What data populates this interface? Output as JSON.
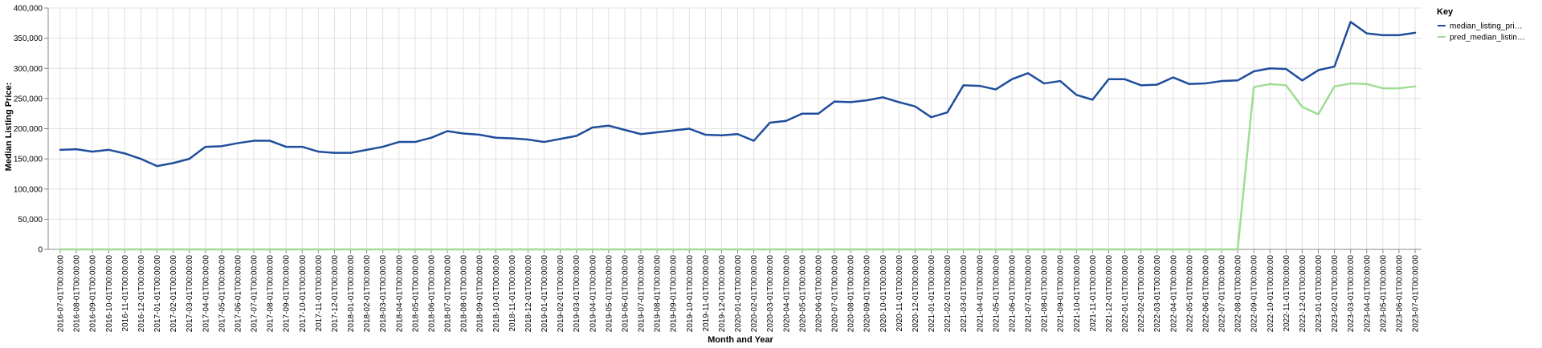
{
  "chart_data": {
    "type": "line",
    "xlabel": "Month and Year",
    "ylabel": "Median Listing Price:",
    "ylim": [
      0,
      400000
    ],
    "yticks": [
      0,
      50000,
      100000,
      150000,
      200000,
      250000,
      300000,
      350000,
      400000
    ],
    "ytick_labels": [
      "0",
      "50,000",
      "100,000",
      "150,000",
      "200,000",
      "250,000",
      "300,000",
      "350,000",
      "400,000"
    ],
    "grid": true,
    "legend": {
      "title": "Key",
      "position": "right"
    },
    "categories": [
      "2016-07-01T00:00:00",
      "2016-08-01T00:00:00",
      "2016-09-01T00:00:00",
      "2016-10-01T00:00:00",
      "2016-11-01T00:00:00",
      "2016-12-01T00:00:00",
      "2017-01-01T00:00:00",
      "2017-02-01T00:00:00",
      "2017-03-01T00:00:00",
      "2017-04-01T00:00:00",
      "2017-05-01T00:00:00",
      "2017-06-01T00:00:00",
      "2017-07-01T00:00:00",
      "2017-08-01T00:00:00",
      "2017-09-01T00:00:00",
      "2017-10-01T00:00:00",
      "2017-11-01T00:00:00",
      "2017-12-01T00:00:00",
      "2018-01-01T00:00:00",
      "2018-02-01T00:00:00",
      "2018-03-01T00:00:00",
      "2018-04-01T00:00:00",
      "2018-05-01T00:00:00",
      "2018-06-01T00:00:00",
      "2018-07-01T00:00:00",
      "2018-08-01T00:00:00",
      "2018-09-01T00:00:00",
      "2018-10-01T00:00:00",
      "2018-11-01T00:00:00",
      "2018-12-01T00:00:00",
      "2019-01-01T00:00:00",
      "2019-02-01T00:00:00",
      "2019-03-01T00:00:00",
      "2019-04-01T00:00:00",
      "2019-05-01T00:00:00",
      "2019-06-01T00:00:00",
      "2019-07-01T00:00:00",
      "2019-08-01T00:00:00",
      "2019-09-01T00:00:00",
      "2019-10-01T00:00:00",
      "2019-11-01T00:00:00",
      "2019-12-01T00:00:00",
      "2020-01-01T00:00:00",
      "2020-02-01T00:00:00",
      "2020-03-01T00:00:00",
      "2020-04-01T00:00:00",
      "2020-05-01T00:00:00",
      "2020-06-01T00:00:00",
      "2020-07-01T00:00:00",
      "2020-08-01T00:00:00",
      "2020-09-01T00:00:00",
      "2020-10-01T00:00:00",
      "2020-11-01T00:00:00",
      "2020-12-01T00:00:00",
      "2021-01-01T00:00:00",
      "2021-02-01T00:00:00",
      "2021-03-01T00:00:00",
      "2021-04-01T00:00:00",
      "2021-05-01T00:00:00",
      "2021-06-01T00:00:00",
      "2021-07-01T00:00:00",
      "2021-08-01T00:00:00",
      "2021-09-01T00:00:00",
      "2021-10-01T00:00:00",
      "2021-11-01T00:00:00",
      "2021-12-01T00:00:00",
      "2022-01-01T00:00:00",
      "2022-02-01T00:00:00",
      "2022-03-01T00:00:00",
      "2022-04-01T00:00:00",
      "2022-05-01T00:00:00",
      "2022-06-01T00:00:00",
      "2022-07-01T00:00:00",
      "2022-08-01T00:00:00",
      "2022-09-01T00:00:00",
      "2022-10-01T00:00:00",
      "2022-11-01T00:00:00",
      "2022-12-01T00:00:00",
      "2023-01-01T00:00:00",
      "2023-02-01T00:00:00",
      "2023-03-01T00:00:00",
      "2023-04-01T00:00:00",
      "2023-05-01T00:00:00",
      "2023-06-01T00:00:00",
      "2023-07-01T00:00:00"
    ],
    "series": [
      {
        "name": "median_listing_pri…",
        "color": "#1f4e9c",
        "values": [
          165000,
          166000,
          162000,
          165000,
          159000,
          150000,
          138000,
          143000,
          150000,
          170000,
          171000,
          176000,
          180000,
          180000,
          170000,
          170000,
          162000,
          160000,
          160000,
          165000,
          170000,
          178000,
          178000,
          185000,
          196000,
          192000,
          190000,
          185000,
          184000,
          182000,
          178000,
          183000,
          188000,
          202000,
          205000,
          198000,
          191000,
          194000,
          197000,
          200000,
          190000,
          189000,
          191000,
          180000,
          210000,
          213000,
          225000,
          225000,
          245000,
          244000,
          247000,
          252000,
          244000,
          237000,
          219000,
          227000,
          272000,
          271000,
          265000,
          282000,
          292000,
          275000,
          279000,
          256000,
          248000,
          282000,
          282000,
          272000,
          273000,
          285000,
          274000,
          275000,
          279000,
          280000,
          295000,
          300000,
          299000,
          280000,
          297000,
          303000,
          377000,
          358000,
          355000,
          355000,
          359000
        ]
      },
      {
        "name": "pred_median_listin…",
        "color": "#a0dc94",
        "values": [
          0,
          0,
          0,
          0,
          0,
          0,
          0,
          0,
          0,
          0,
          0,
          0,
          0,
          0,
          0,
          0,
          0,
          0,
          0,
          0,
          0,
          0,
          0,
          0,
          0,
          0,
          0,
          0,
          0,
          0,
          0,
          0,
          0,
          0,
          0,
          0,
          0,
          0,
          0,
          0,
          0,
          0,
          0,
          0,
          0,
          0,
          0,
          0,
          0,
          0,
          0,
          0,
          0,
          0,
          0,
          0,
          0,
          0,
          0,
          0,
          0,
          0,
          0,
          0,
          0,
          0,
          0,
          0,
          0,
          0,
          0,
          0,
          0,
          0,
          269000,
          274000,
          272000,
          236000,
          224000,
          270000,
          275000,
          274000,
          267000,
          267000,
          270000
        ]
      }
    ]
  }
}
